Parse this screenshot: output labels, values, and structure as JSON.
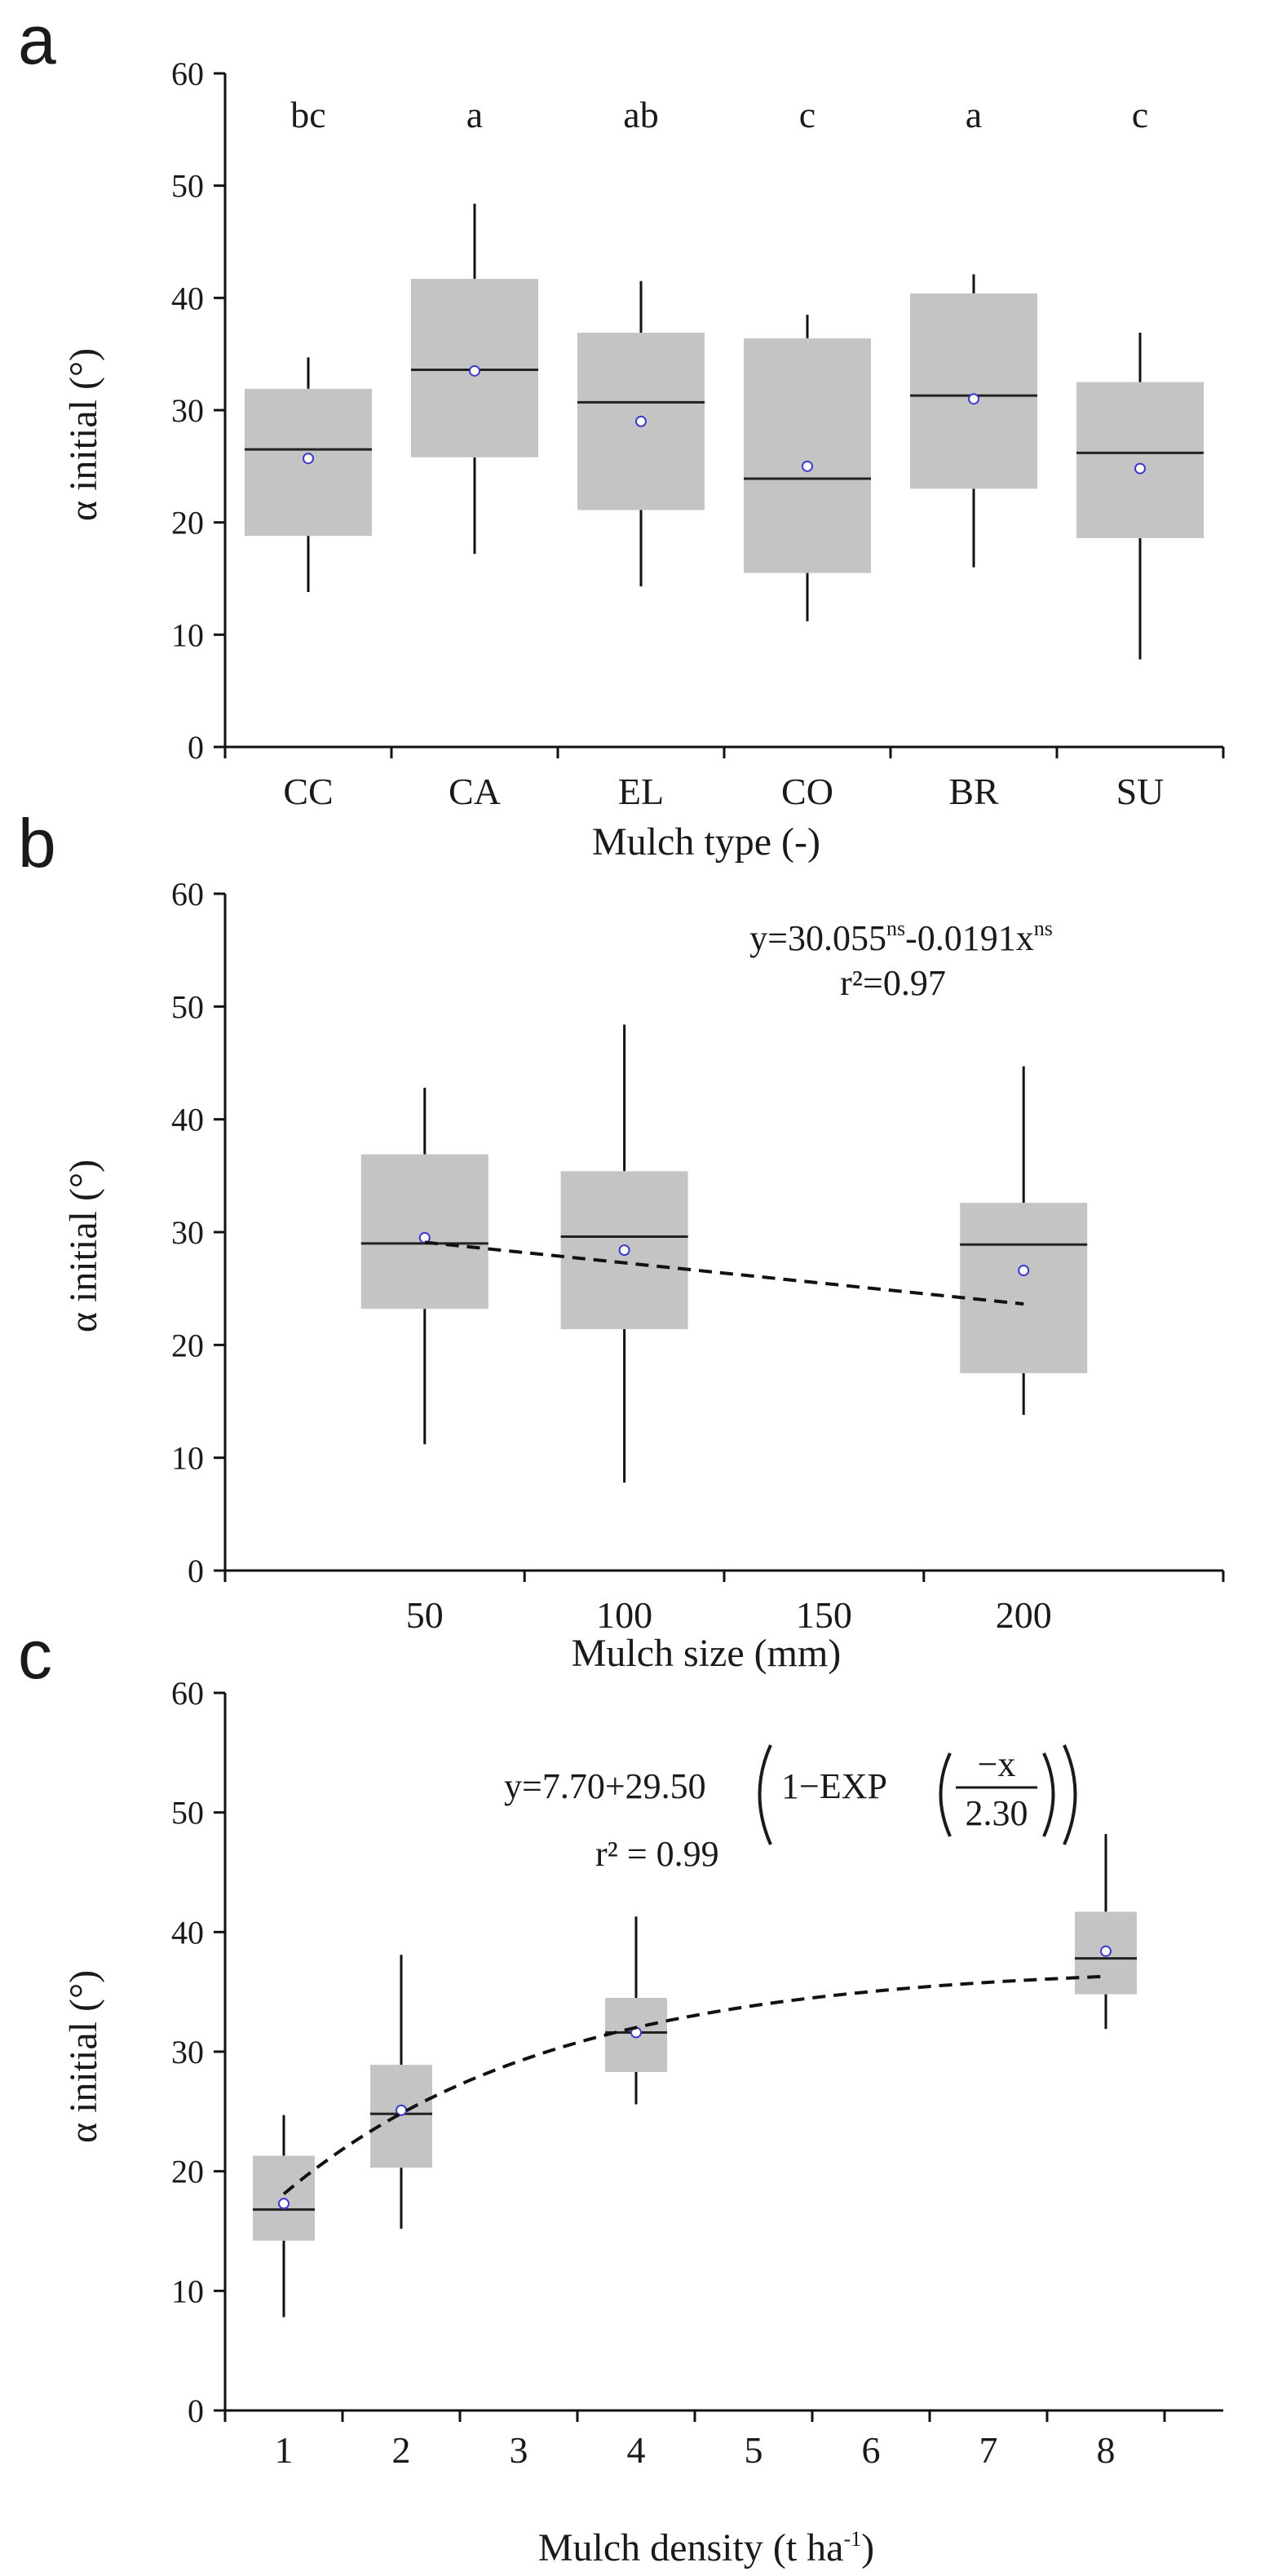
{
  "chart_data": [
    {
      "panel_label": "a",
      "type": "box",
      "xlabel": "Mulch type (-)",
      "ylabel": "α initial (°)",
      "ylim": [
        0,
        60
      ],
      "yticks": [
        0,
        10,
        20,
        30,
        40,
        50,
        60
      ],
      "categories": [
        "CC",
        "CA",
        "EL",
        "CO",
        "BR",
        "SU"
      ],
      "letters": [
        "bc",
        "a",
        "ab",
        "c",
        "a",
        "c"
      ],
      "boxes": [
        {
          "min": 13.8,
          "q1": 18.8,
          "median": 26.5,
          "q3": 31.9,
          "max": 34.7,
          "mean": 25.7
        },
        {
          "min": 17.2,
          "q1": 25.8,
          "median": 33.6,
          "q3": 41.7,
          "max": 48.4,
          "mean": 33.5
        },
        {
          "min": 14.3,
          "q1": 21.1,
          "median": 30.7,
          "q3": 36.9,
          "max": 41.5,
          "mean": 29.0
        },
        {
          "min": 11.2,
          "q1": 15.5,
          "median": 23.9,
          "q3": 36.4,
          "max": 38.5,
          "mean": 25.0
        },
        {
          "min": 16.0,
          "q1": 23.0,
          "median": 31.3,
          "q3": 40.4,
          "max": 42.1,
          "mean": 31.0
        },
        {
          "min": 7.8,
          "q1": 18.6,
          "median": 26.2,
          "q3": 32.5,
          "max": 36.9,
          "mean": 24.8
        }
      ]
    },
    {
      "panel_label": "b",
      "type": "box",
      "xlabel": "Mulch size (mm)",
      "ylabel": "α initial (°)",
      "ylim": [
        0,
        60
      ],
      "xlim": [
        0,
        250
      ],
      "yticks": [
        0,
        10,
        20,
        30,
        40,
        50,
        60
      ],
      "xtick_labels": [
        "50",
        "100",
        "150",
        "200"
      ],
      "xtick_values": [
        50,
        100,
        150,
        200
      ],
      "positions": [
        50,
        100,
        200
      ],
      "boxes": [
        {
          "min": 11.2,
          "q1": 23.2,
          "median": 29.0,
          "q3": 36.9,
          "max": 42.8,
          "mean": 29.5
        },
        {
          "min": 7.8,
          "q1": 21.4,
          "median": 29.6,
          "q3": 35.4,
          "max": 48.4,
          "mean": 28.4
        },
        {
          "min": 13.8,
          "q1": 17.5,
          "median": 28.9,
          "q3": 32.6,
          "max": 44.7,
          "mean": 26.6
        }
      ],
      "fit": {
        "intercept": 30.055,
        "slope": -0.0191,
        "x_from": 50,
        "x_to": 200
      },
      "equation": {
        "y_part": "y=30.055",
        "sup1": "ns",
        "x_part": "-0.0191x",
        "sup2": "ns"
      },
      "r2": "r²=0.97"
    },
    {
      "panel_label": "c",
      "type": "box",
      "xlabel": "Mulch density (t ha-1)",
      "xlabel_main": "Mulch density (t ha",
      "xlabel_sup": "-1",
      "xlabel_end": ")",
      "ylabel": "α initial  (°)",
      "ylim": [
        0,
        60
      ],
      "xlim": [
        0.5,
        9.0
      ],
      "yticks": [
        0,
        10,
        20,
        30,
        40,
        50,
        60
      ],
      "xtick_labels": [
        "1",
        "2",
        "3",
        "4",
        "5",
        "6",
        "7",
        "8"
      ],
      "xtick_values": [
        1,
        2,
        3,
        4,
        5,
        6,
        7,
        8
      ],
      "positions": [
        1,
        2,
        4,
        8
      ],
      "boxes": [
        {
          "min": 7.8,
          "q1": 14.2,
          "median": 16.8,
          "q3": 21.3,
          "max": 24.7,
          "mean": 17.3
        },
        {
          "min": 15.2,
          "q1": 20.3,
          "median": 24.8,
          "q3": 28.9,
          "max": 38.1,
          "mean": 25.1
        },
        {
          "min": 25.6,
          "q1": 28.3,
          "median": 31.6,
          "q3": 34.5,
          "max": 41.3,
          "mean": 31.6
        },
        {
          "min": 31.9,
          "q1": 34.8,
          "median": 37.8,
          "q3": 41.7,
          "max": 48.2,
          "mean": 38.4
        }
      ],
      "fit": {
        "a": 7.7,
        "b": 29.5,
        "c": 2.3,
        "x_from": 1,
        "x_to": 8
      },
      "equation": {
        "lhs": "y=7.70+29.50",
        "inner": "1−EXP",
        "numerator": "−x",
        "denominator": "2.30"
      },
      "r2": "r² = 0.99"
    }
  ]
}
